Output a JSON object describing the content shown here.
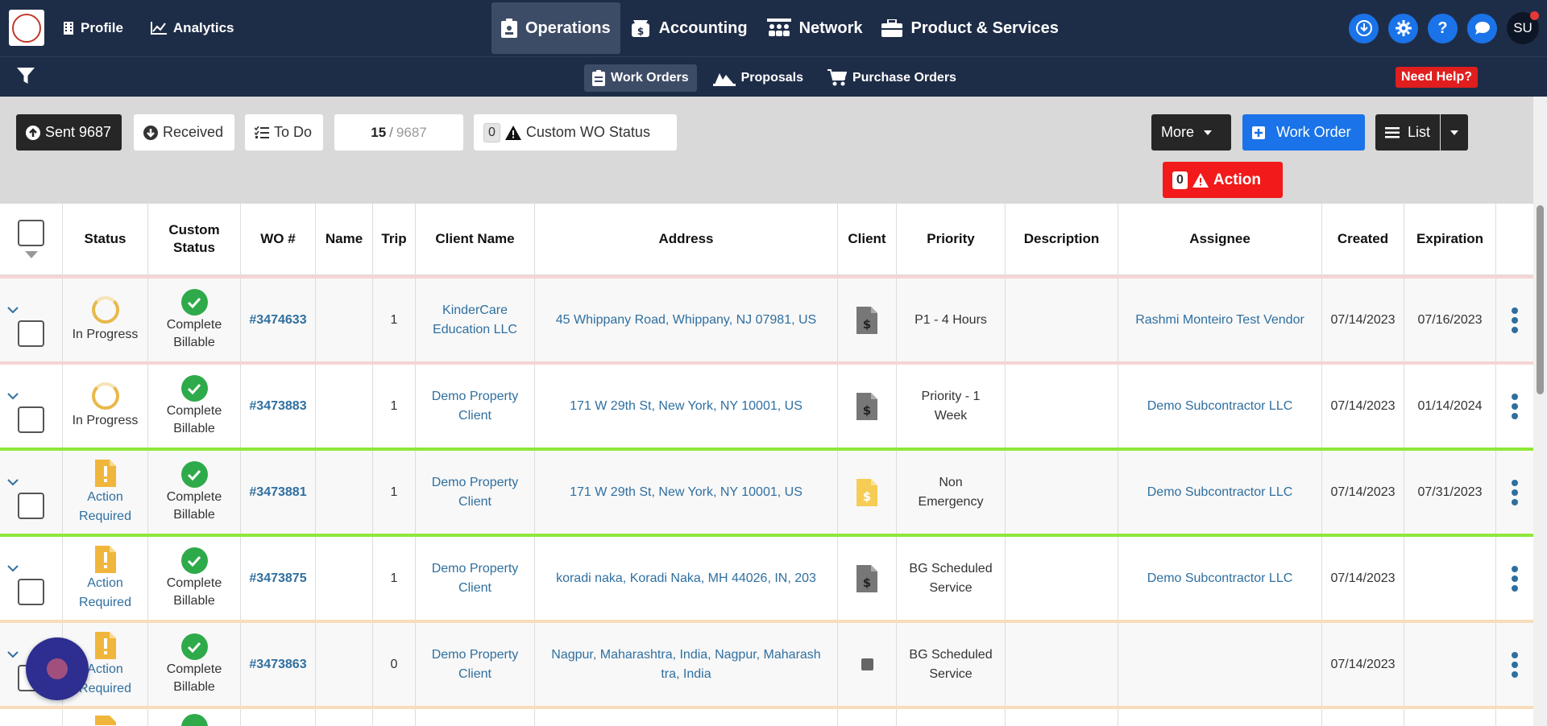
{
  "topnav": {
    "logo_alt": "logo",
    "left": [
      {
        "label": "Profile",
        "icon": "building-icon"
      },
      {
        "label": "Analytics",
        "icon": "chart-line-icon"
      }
    ],
    "main": [
      {
        "label": "Operations",
        "icon": "clipboard-icon",
        "active": true
      },
      {
        "label": "Accounting",
        "icon": "money-icon"
      },
      {
        "label": "Network",
        "icon": "people-icon"
      },
      {
        "label": "Product & Services",
        "icon": "briefcase-icon"
      }
    ],
    "right": {
      "avatar": "SU"
    }
  },
  "subnav": {
    "items": [
      {
        "label": "Work Orders",
        "active": true
      },
      {
        "label": "Proposals"
      },
      {
        "label": "Purchase Orders"
      }
    ],
    "need_help": "Need Help?"
  },
  "toolbar": {
    "sent_label": "Sent 9687",
    "received_label": "Received",
    "todo_label": "To Do",
    "page_current": "15",
    "page_sep": "/",
    "page_total": "9687",
    "custom_count": "0",
    "custom_label": "Custom WO Status",
    "more_label": "More",
    "work_order_label": "Work Order",
    "list_label": "List",
    "action_count": "0",
    "action_label": "Action"
  },
  "table": {
    "headers": {
      "status": "Status",
      "custom_status_1": "Custom",
      "custom_status_2": "Status",
      "wo": "WO #",
      "name": "Name",
      "trip": "Trip",
      "client_name": "Client Name",
      "address": "Address",
      "client": "Client",
      "priority": "Priority",
      "description": "Description",
      "assignee": "Assignee",
      "created": "Created",
      "expiration": "Expiration"
    },
    "rows": [
      {
        "status_1": "In Progress",
        "status_2": "",
        "custom_1": "Complete",
        "custom_2": "Billable",
        "wo": "#3474633",
        "name": "",
        "trip": "1",
        "client_name_1": "KinderCare",
        "client_name_2": "Education LLC",
        "address": "45 Whippany Road, Whippany, NJ 07981, US",
        "priority_1": "P1 - 4 Hours",
        "priority_2": "",
        "description": "",
        "assignee": "Rashmi Monteiro Test Vendor",
        "created": "07/14/2023",
        "expiration": "07/16/2023"
      },
      {
        "status_1": "In Progress",
        "status_2": "",
        "custom_1": "Complete",
        "custom_2": "Billable",
        "wo": "#3473883",
        "name": "",
        "trip": "1",
        "client_name_1": "Demo Property",
        "client_name_2": "Client",
        "address": "171 W 29th St, New York, NY 10001, US",
        "priority_1": "Priority - 1",
        "priority_2": "Week",
        "description": "",
        "assignee": "Demo Subcontractor LLC",
        "created": "07/14/2023",
        "expiration": "01/14/2024"
      },
      {
        "status_1": "Action",
        "status_2": "Required",
        "custom_1": "Complete",
        "custom_2": "Billable",
        "wo": "#3473881",
        "name": "",
        "trip": "1",
        "client_name_1": "Demo Property",
        "client_name_2": "Client",
        "address": "171 W 29th St, New York, NY 10001, US",
        "priority_1": "Non",
        "priority_2": "Emergency",
        "description": "",
        "assignee": "Demo Subcontractor LLC",
        "created": "07/14/2023",
        "expiration": "07/31/2023"
      },
      {
        "status_1": "Action",
        "status_2": "Required",
        "custom_1": "Complete",
        "custom_2": "Billable",
        "wo": "#3473875",
        "name": "",
        "trip": "1",
        "client_name_1": "Demo Property",
        "client_name_2": "Client",
        "address": "koradi naka, Koradi Naka, MH 44026, IN, 203",
        "priority_1": "BG Scheduled",
        "priority_2": "Service",
        "description": "",
        "assignee": "Demo Subcontractor LLC",
        "created": "07/14/2023",
        "expiration": ""
      },
      {
        "status_1": "Action",
        "status_2": "Required",
        "custom_1": "Complete",
        "custom_2": "Billable",
        "wo": "#3473863",
        "name": "",
        "trip": "0",
        "client_name_1": "Demo Property",
        "client_name_2": "Client",
        "address_1": "Nagpur, Maharashtra, India, Nagpur, Maharash",
        "address_2": "tra, India",
        "priority_1": "BG Scheduled",
        "priority_2": "Service",
        "description": "",
        "assignee": "",
        "created": "07/14/2023",
        "expiration": ""
      }
    ]
  },
  "colors": {
    "nav_bg": "#1e2d47",
    "accent_blue": "#1a73e8",
    "danger_red": "#f21a1a",
    "success_green": "#2eaa4a",
    "row_border_green": "#8de83a",
    "row_border_pink": "#f7d4d4",
    "row_border_peach": "#f8dcbc"
  }
}
